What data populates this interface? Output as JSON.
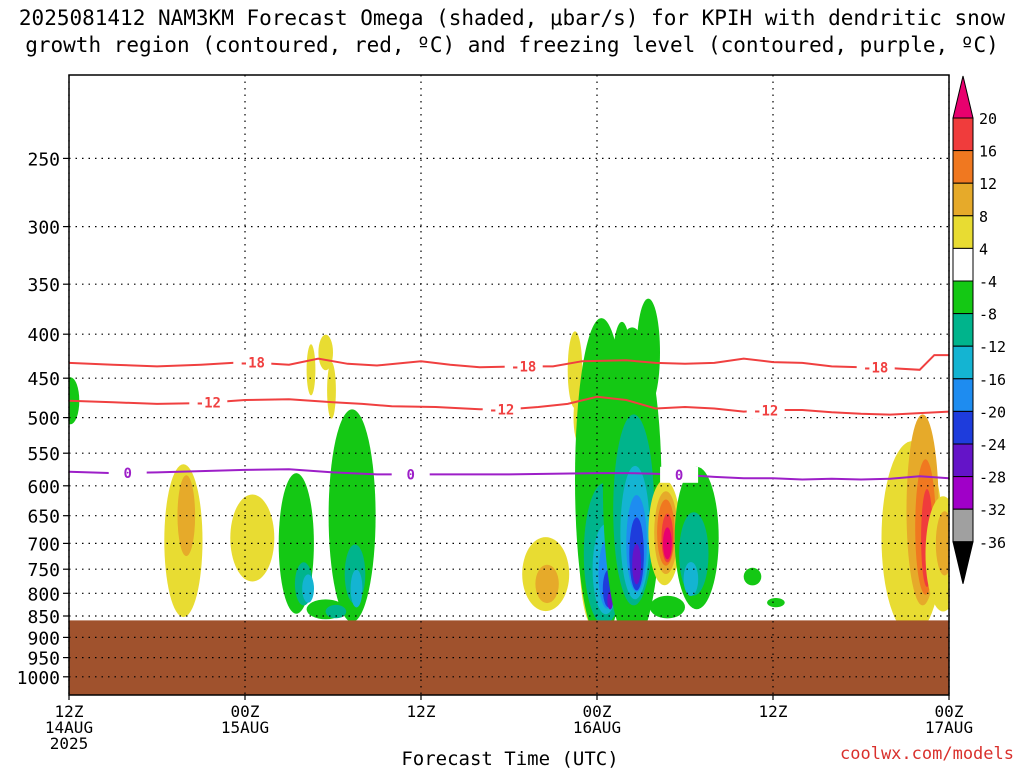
{
  "title_line1": "2025081412 NAM3KM Forecast Omega (shaded, μbar/s) for KPIH with dendritic snow",
  "title_line2": "growth region (contoured, red, ºC) and freezing level (contoured, purple, ºC)",
  "credit": "coolwx.com/models",
  "chart_data": {
    "type": "heatmap",
    "title": "2025081412 NAM3KM Forecast Omega (shaded, μbar/s) for KPIH with dendritic snow growth region (contoured, red, ºC) and freezing level (contoured, purple, ºC)",
    "xlabel": "Forecast Time (UTC)",
    "ylabel": "",
    "x_ticks": [
      {
        "hour": 0,
        "line1": "12Z",
        "line2": "14AUG",
        "line3": "2025"
      },
      {
        "hour": 12,
        "line1": "00Z",
        "line2": "15AUG",
        "line3": ""
      },
      {
        "hour": 24,
        "line1": "12Z",
        "line2": "",
        "line3": ""
      },
      {
        "hour": 36,
        "line1": "00Z",
        "line2": "16AUG",
        "line3": ""
      },
      {
        "hour": 48,
        "line1": "12Z",
        "line2": "",
        "line3": ""
      },
      {
        "hour": 60,
        "line1": "00Z",
        "line2": "17AUG",
        "line3": ""
      }
    ],
    "xlim_hours": [
      0,
      60
    ],
    "y_ticks": [
      250,
      300,
      350,
      400,
      450,
      500,
      550,
      600,
      650,
      700,
      750,
      800,
      850,
      900,
      950,
      1000
    ],
    "y_axis": "pressure (hPa), log scale, inverted",
    "ylim": [
      1050,
      200
    ],
    "grid": "dotted",
    "colorbar": {
      "ticks": [
        "20",
        "16",
        "12",
        "8",
        "4",
        "-4",
        "-8",
        "-12",
        "-16",
        "-20",
        "-24",
        "-28",
        "-32",
        "-36"
      ],
      "colors": [
        "#e8006e",
        "#f03c3c",
        "#f07820",
        "#e6aa2a",
        "#e8dc32",
        "#ffffff",
        "#14c814",
        "#00b48c",
        "#14b4d2",
        "#1e8cf0",
        "#1e3cdc",
        "#6414c8",
        "#a000c8",
        "#a0a0a0",
        "#000000"
      ]
    },
    "terrain": {
      "surface_pressure": 860,
      "color": "#a0522d"
    },
    "contours": [
      {
        "name": "-18",
        "color": "#f04040",
        "labels_at_hours": [
          12.5,
          31,
          55
        ],
        "points": [
          [
            0,
            432
          ],
          [
            3,
            434
          ],
          [
            6,
            436
          ],
          [
            9,
            434
          ],
          [
            12,
            431
          ],
          [
            15,
            434
          ],
          [
            17,
            427
          ],
          [
            19,
            433
          ],
          [
            21,
            435
          ],
          [
            24,
            430
          ],
          [
            26,
            434
          ],
          [
            28,
            437
          ],
          [
            31,
            436
          ],
          [
            33,
            436
          ],
          [
            35,
            430
          ],
          [
            38,
            429
          ],
          [
            40,
            432
          ],
          [
            42,
            433
          ],
          [
            44,
            432
          ],
          [
            46,
            427
          ],
          [
            48,
            431
          ],
          [
            50,
            432
          ],
          [
            52,
            436
          ],
          [
            54,
            437
          ],
          [
            56,
            438
          ],
          [
            58,
            440
          ],
          [
            59,
            423
          ],
          [
            60,
            423
          ]
        ]
      },
      {
        "name": "-12",
        "color": "#f04040",
        "labels_at_hours": [
          9.5,
          29.5,
          47.5
        ],
        "points": [
          [
            0,
            478
          ],
          [
            3,
            480
          ],
          [
            6,
            482
          ],
          [
            9,
            481
          ],
          [
            12,
            477
          ],
          [
            15,
            476
          ],
          [
            18,
            480
          ],
          [
            20,
            482
          ],
          [
            22,
            485
          ],
          [
            25,
            486
          ],
          [
            28,
            489
          ],
          [
            30,
            489
          ],
          [
            32,
            486
          ],
          [
            34,
            482
          ],
          [
            36,
            473
          ],
          [
            38,
            477
          ],
          [
            40,
            488
          ],
          [
            42,
            486
          ],
          [
            44,
            488
          ],
          [
            46,
            492
          ],
          [
            48,
            490
          ],
          [
            50,
            490
          ],
          [
            52,
            493
          ],
          [
            54,
            495
          ],
          [
            56,
            496
          ],
          [
            58,
            494
          ],
          [
            60,
            492
          ]
        ]
      },
      {
        "name": "0",
        "color": "#9d1fc8",
        "labels_at_hours": [
          4,
          23.3,
          41.6
        ],
        "points": [
          [
            0,
            578
          ],
          [
            3,
            580
          ],
          [
            6,
            579
          ],
          [
            9,
            577
          ],
          [
            12,
            575
          ],
          [
            15,
            574
          ],
          [
            18,
            579
          ],
          [
            21,
            582
          ],
          [
            24,
            582
          ],
          [
            27,
            582
          ],
          [
            30,
            582
          ],
          [
            33,
            581
          ],
          [
            36,
            580
          ],
          [
            38,
            580
          ],
          [
            40,
            581
          ],
          [
            42,
            583
          ],
          [
            44,
            586
          ],
          [
            46,
            588
          ],
          [
            48,
            588
          ],
          [
            50,
            590
          ],
          [
            52,
            589
          ],
          [
            54,
            590
          ],
          [
            56,
            589
          ],
          [
            58,
            585
          ],
          [
            60,
            588
          ]
        ]
      }
    ]
  }
}
